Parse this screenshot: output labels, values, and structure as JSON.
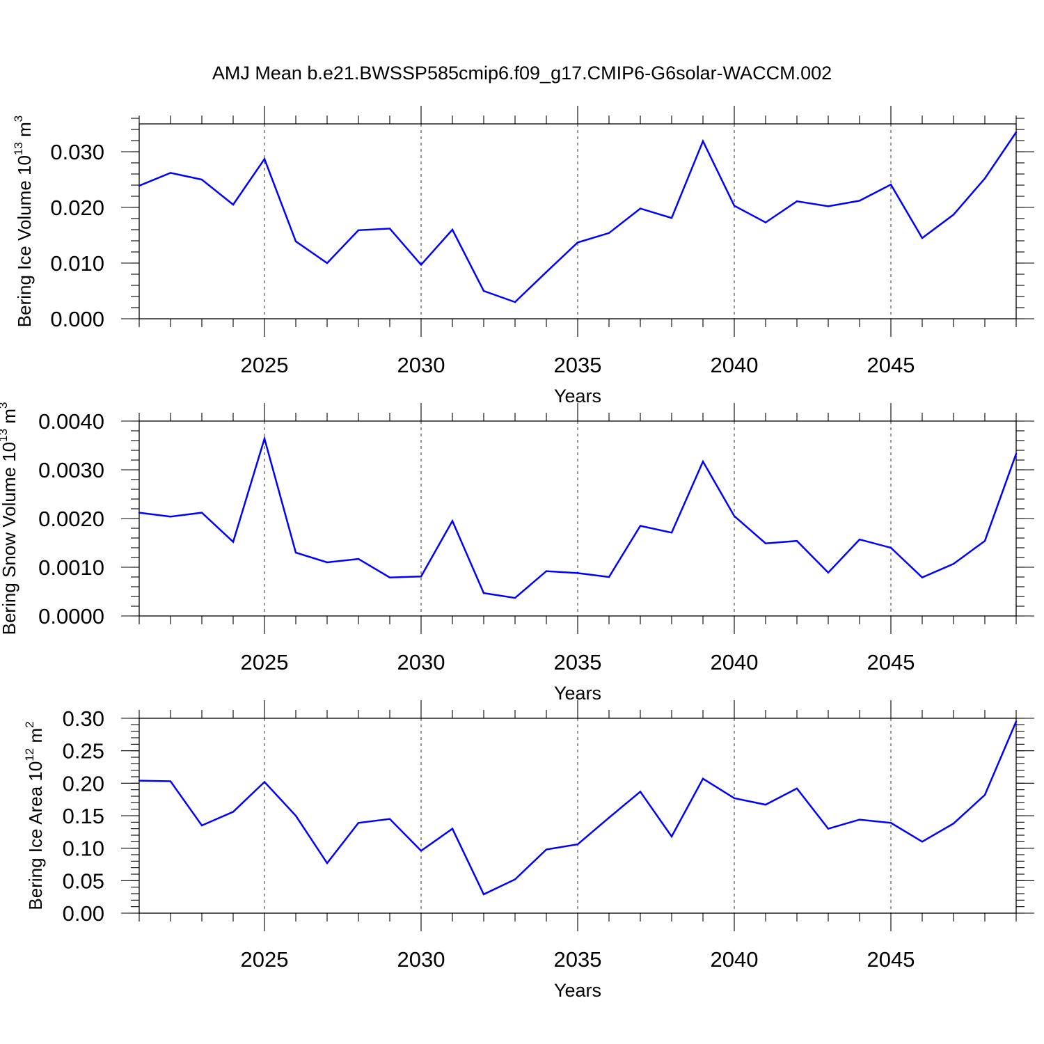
{
  "figure": {
    "title": "AMJ Mean b.e21.BWSSP585cmip6.f09_g17.CMIP6-G6solar-WACCM.002"
  },
  "colors": {
    "line": "#0000ff",
    "axis": "#000000"
  },
  "chart_data": [
    {
      "type": "line",
      "ylabel": "Bering Ice Volume 10",
      "ylabel_exp": "13",
      "ylabel_unit": "m",
      "ylabel_unit_exp": "3",
      "xlabel": "Years",
      "xlim": [
        2021,
        2049
      ],
      "ylim": [
        0,
        0.035
      ],
      "xticks": [
        2025,
        2030,
        2035,
        2040,
        2045
      ],
      "xtick_labels": [
        "2025",
        "2030",
        "2035",
        "2040",
        "2045"
      ],
      "yticks": [
        0,
        0.01,
        0.02,
        0.03
      ],
      "ytick_labels": [
        "0.000",
        "0.010",
        "0.020",
        "0.030"
      ],
      "y_minor_step": 0.002,
      "grid": "x-dashed",
      "x": [
        2021,
        2022,
        2023,
        2024,
        2025,
        2026,
        2027,
        2028,
        2029,
        2030,
        2031,
        2032,
        2033,
        2034,
        2035,
        2036,
        2037,
        2038,
        2039,
        2040,
        2041,
        2042,
        2043,
        2044,
        2045,
        2046,
        2047,
        2048,
        2049
      ],
      "series": [
        {
          "values": [
            0.0239,
            0.0262,
            0.025,
            0.0205,
            0.0287,
            0.0139,
            0.01,
            0.0159,
            0.0162,
            0.0097,
            0.016,
            0.005,
            0.003,
            0.0084,
            0.0137,
            0.0154,
            0.0198,
            0.0181,
            0.0319,
            0.0203,
            0.0173,
            0.0211,
            0.0202,
            0.0212,
            0.0241,
            0.0145,
            0.0187,
            0.0252,
            0.0335
          ]
        }
      ]
    },
    {
      "type": "line",
      "ylabel": "Bering Snow Volume 10",
      "ylabel_exp": "13",
      "ylabel_unit": "m",
      "ylabel_unit_exp": "3",
      "xlabel": "Years",
      "xlim": [
        2021,
        2049
      ],
      "ylim": [
        0,
        0.004
      ],
      "xticks": [
        2025,
        2030,
        2035,
        2040,
        2045
      ],
      "xtick_labels": [
        "2025",
        "2030",
        "2035",
        "2040",
        "2045"
      ],
      "yticks": [
        0,
        0.001,
        0.002,
        0.003,
        0.004
      ],
      "ytick_labels": [
        "0.0000",
        "0.0010",
        "0.0020",
        "0.0030",
        "0.0040"
      ],
      "y_minor_step": 0.0002,
      "grid": "x-dashed",
      "x": [
        2021,
        2022,
        2023,
        2024,
        2025,
        2026,
        2027,
        2028,
        2029,
        2030,
        2031,
        2032,
        2033,
        2034,
        2035,
        2036,
        2037,
        2038,
        2039,
        2040,
        2041,
        2042,
        2043,
        2044,
        2045,
        2046,
        2047,
        2048,
        2049
      ],
      "series": [
        {
          "values": [
            0.00212,
            0.00204,
            0.00212,
            0.00152,
            0.00364,
            0.0013,
            0.0011,
            0.00117,
            0.00079,
            0.00081,
            0.00195,
            0.00047,
            0.00037,
            0.00092,
            0.00088,
            0.0008,
            0.00185,
            0.00171,
            0.00317,
            0.00205,
            0.00149,
            0.00154,
            0.00089,
            0.00157,
            0.0014,
            0.00079,
            0.00107,
            0.00154,
            0.00333
          ]
        }
      ]
    },
    {
      "type": "line",
      "ylabel": "Bering Ice Area 10",
      "ylabel_exp": "12",
      "ylabel_unit": "m",
      "ylabel_unit_exp": "2",
      "xlabel": "Years",
      "xlim": [
        2021,
        2049
      ],
      "ylim": [
        0,
        0.3
      ],
      "xticks": [
        2025,
        2030,
        2035,
        2040,
        2045
      ],
      "xtick_labels": [
        "2025",
        "2030",
        "2035",
        "2040",
        "2045"
      ],
      "yticks": [
        0,
        0.05,
        0.1,
        0.15,
        0.2,
        0.25,
        0.3
      ],
      "ytick_labels": [
        "0.00",
        "0.05",
        "0.10",
        "0.15",
        "0.20",
        "0.25",
        "0.30"
      ],
      "y_minor_step": 0.01,
      "grid": "x-dashed",
      "x": [
        2021,
        2022,
        2023,
        2024,
        2025,
        2026,
        2027,
        2028,
        2029,
        2030,
        2031,
        2032,
        2033,
        2034,
        2035,
        2036,
        2037,
        2038,
        2039,
        2040,
        2041,
        2042,
        2043,
        2044,
        2045,
        2046,
        2047,
        2048,
        2049
      ],
      "series": [
        {
          "values": [
            0.204,
            0.203,
            0.135,
            0.156,
            0.202,
            0.15,
            0.077,
            0.139,
            0.145,
            0.096,
            0.13,
            0.029,
            0.052,
            0.098,
            0.106,
            0.147,
            0.187,
            0.118,
            0.207,
            0.177,
            0.167,
            0.192,
            0.13,
            0.144,
            0.139,
            0.11,
            0.138,
            0.182,
            0.295
          ]
        }
      ]
    }
  ]
}
